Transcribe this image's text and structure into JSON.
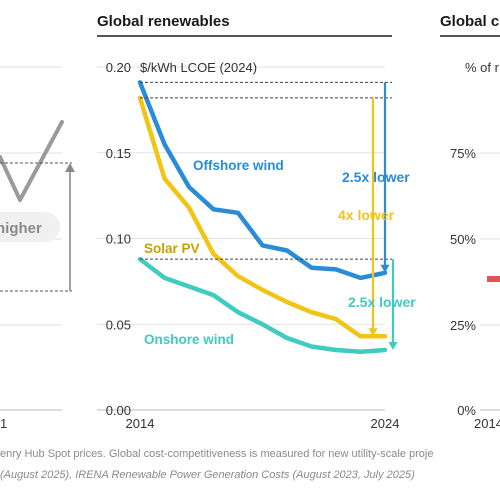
{
  "header": {
    "middle_title": "Global renewables",
    "right_title": "Global c"
  },
  "left_panel": {
    "annotation": "higher",
    "x_tick": "1",
    "colors": {
      "line": "#9a9a9a",
      "bracket": "#8a8a8a"
    }
  },
  "right_panel": {
    "unit_label": "% of r",
    "ticks": [
      "75%",
      "50%",
      "25%",
      "0%"
    ],
    "x_tick": "2014",
    "marker_color": "#e05555"
  },
  "chart_data": {
    "type": "line",
    "title": "Global renewables",
    "ylabel": "$/kWh LCOE (2024)",
    "xlabel": "",
    "xlim": [
      2014,
      2024
    ],
    "ylim": [
      0,
      0.2
    ],
    "x_ticks": [
      "2014",
      "2024"
    ],
    "y_ticks": [
      "0.00",
      "0.05",
      "0.10",
      "0.15",
      "0.20"
    ],
    "grid": true,
    "x": [
      2014,
      2015,
      2016,
      2017,
      2018,
      2019,
      2020,
      2021,
      2022,
      2023,
      2024
    ],
    "series": [
      {
        "name": "Offshore wind",
        "color": "#2a8bd6",
        "values": [
          0.191,
          0.155,
          0.13,
          0.117,
          0.115,
          0.096,
          0.093,
          0.083,
          0.082,
          0.077,
          0.08
        ]
      },
      {
        "name": "Solar PV",
        "color": "#f2c414",
        "values": [
          0.182,
          0.135,
          0.118,
          0.091,
          0.078,
          0.07,
          0.063,
          0.057,
          0.053,
          0.043,
          0.043
        ]
      },
      {
        "name": "Onshore wind",
        "color": "#3fcbc0",
        "values": [
          0.088,
          0.077,
          0.072,
          0.067,
          0.057,
          0.05,
          0.042,
          0.037,
          0.035,
          0.034,
          0.035
        ]
      }
    ],
    "annotations": [
      {
        "text": "2.5x lower",
        "color": "#2a8bd6"
      },
      {
        "text": "4x lower",
        "color": "#f2c414"
      },
      {
        "text": "2.5x lower",
        "color": "#3fcbc0"
      }
    ]
  },
  "footer": {
    "line1": "enry Hub Spot prices. Global cost-competitiveness is measured for new utility-scale proje",
    "line2_a": "(August 2025), ",
    "line2_b": "IRENA Renewable Power Generation Costs",
    "line2_c": " (August 2023, July 2025)"
  }
}
